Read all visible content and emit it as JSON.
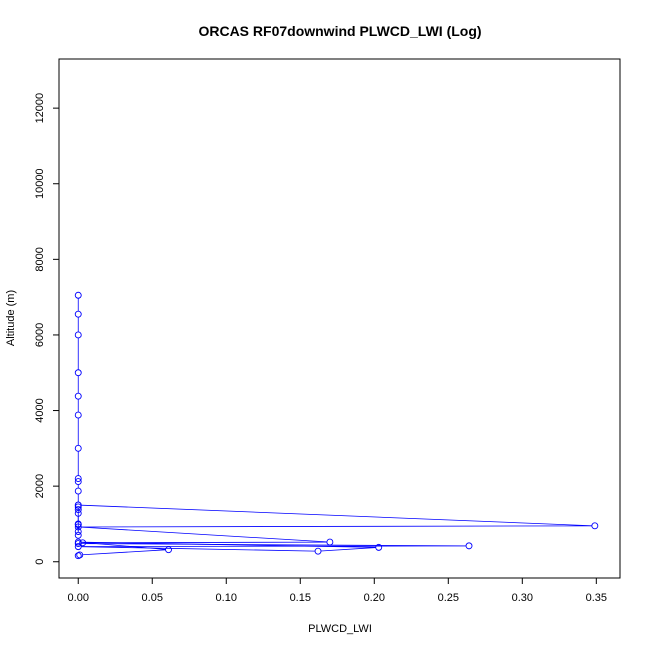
{
  "chart_data": {
    "type": "line",
    "title": "ORCAS RF07downwind PLWCD_LWI (Log)",
    "xlabel": "PLWCD_LWI",
    "ylabel": "Altitude (m)",
    "xlim": [
      -0.013,
      0.366
    ],
    "ylim": [
      -430,
      13300
    ],
    "xticks": [
      0,
      0.05,
      0.1,
      0.15,
      0.2,
      0.25,
      0.3,
      0.35
    ],
    "xtick_labels": [
      "0.00",
      "0.05",
      "0.10",
      "0.15",
      "0.20",
      "0.25",
      "0.30",
      "0.35"
    ],
    "yticks": [
      0,
      2000,
      4000,
      6000,
      8000,
      10000,
      12000
    ],
    "ytick_labels": [
      "0",
      "2000",
      "4000",
      "6000",
      "8000",
      "10000",
      "12000"
    ],
    "grid": false,
    "series": [
      {
        "color": "#0000ff",
        "marker": "open-circle",
        "x": [
          0,
          0,
          0,
          0,
          0,
          0,
          0,
          0,
          0,
          0,
          0,
          0,
          0,
          0,
          0,
          0,
          0,
          0,
          0,
          0.349,
          0,
          0.17,
          0.003,
          0,
          0.264,
          0,
          0.162,
          0.203,
          0,
          0.061,
          0.001,
          0
        ],
        "y": [
          7050,
          6550,
          6000,
          5000,
          4380,
          3880,
          3000,
          2200,
          2120,
          1870,
          1500,
          1450,
          1380,
          1280,
          1000,
          980,
          800,
          700,
          1500,
          950,
          920,
          520,
          500,
          480,
          420,
          400,
          280,
          380,
          520,
          320,
          180,
          160
        ]
      }
    ]
  }
}
